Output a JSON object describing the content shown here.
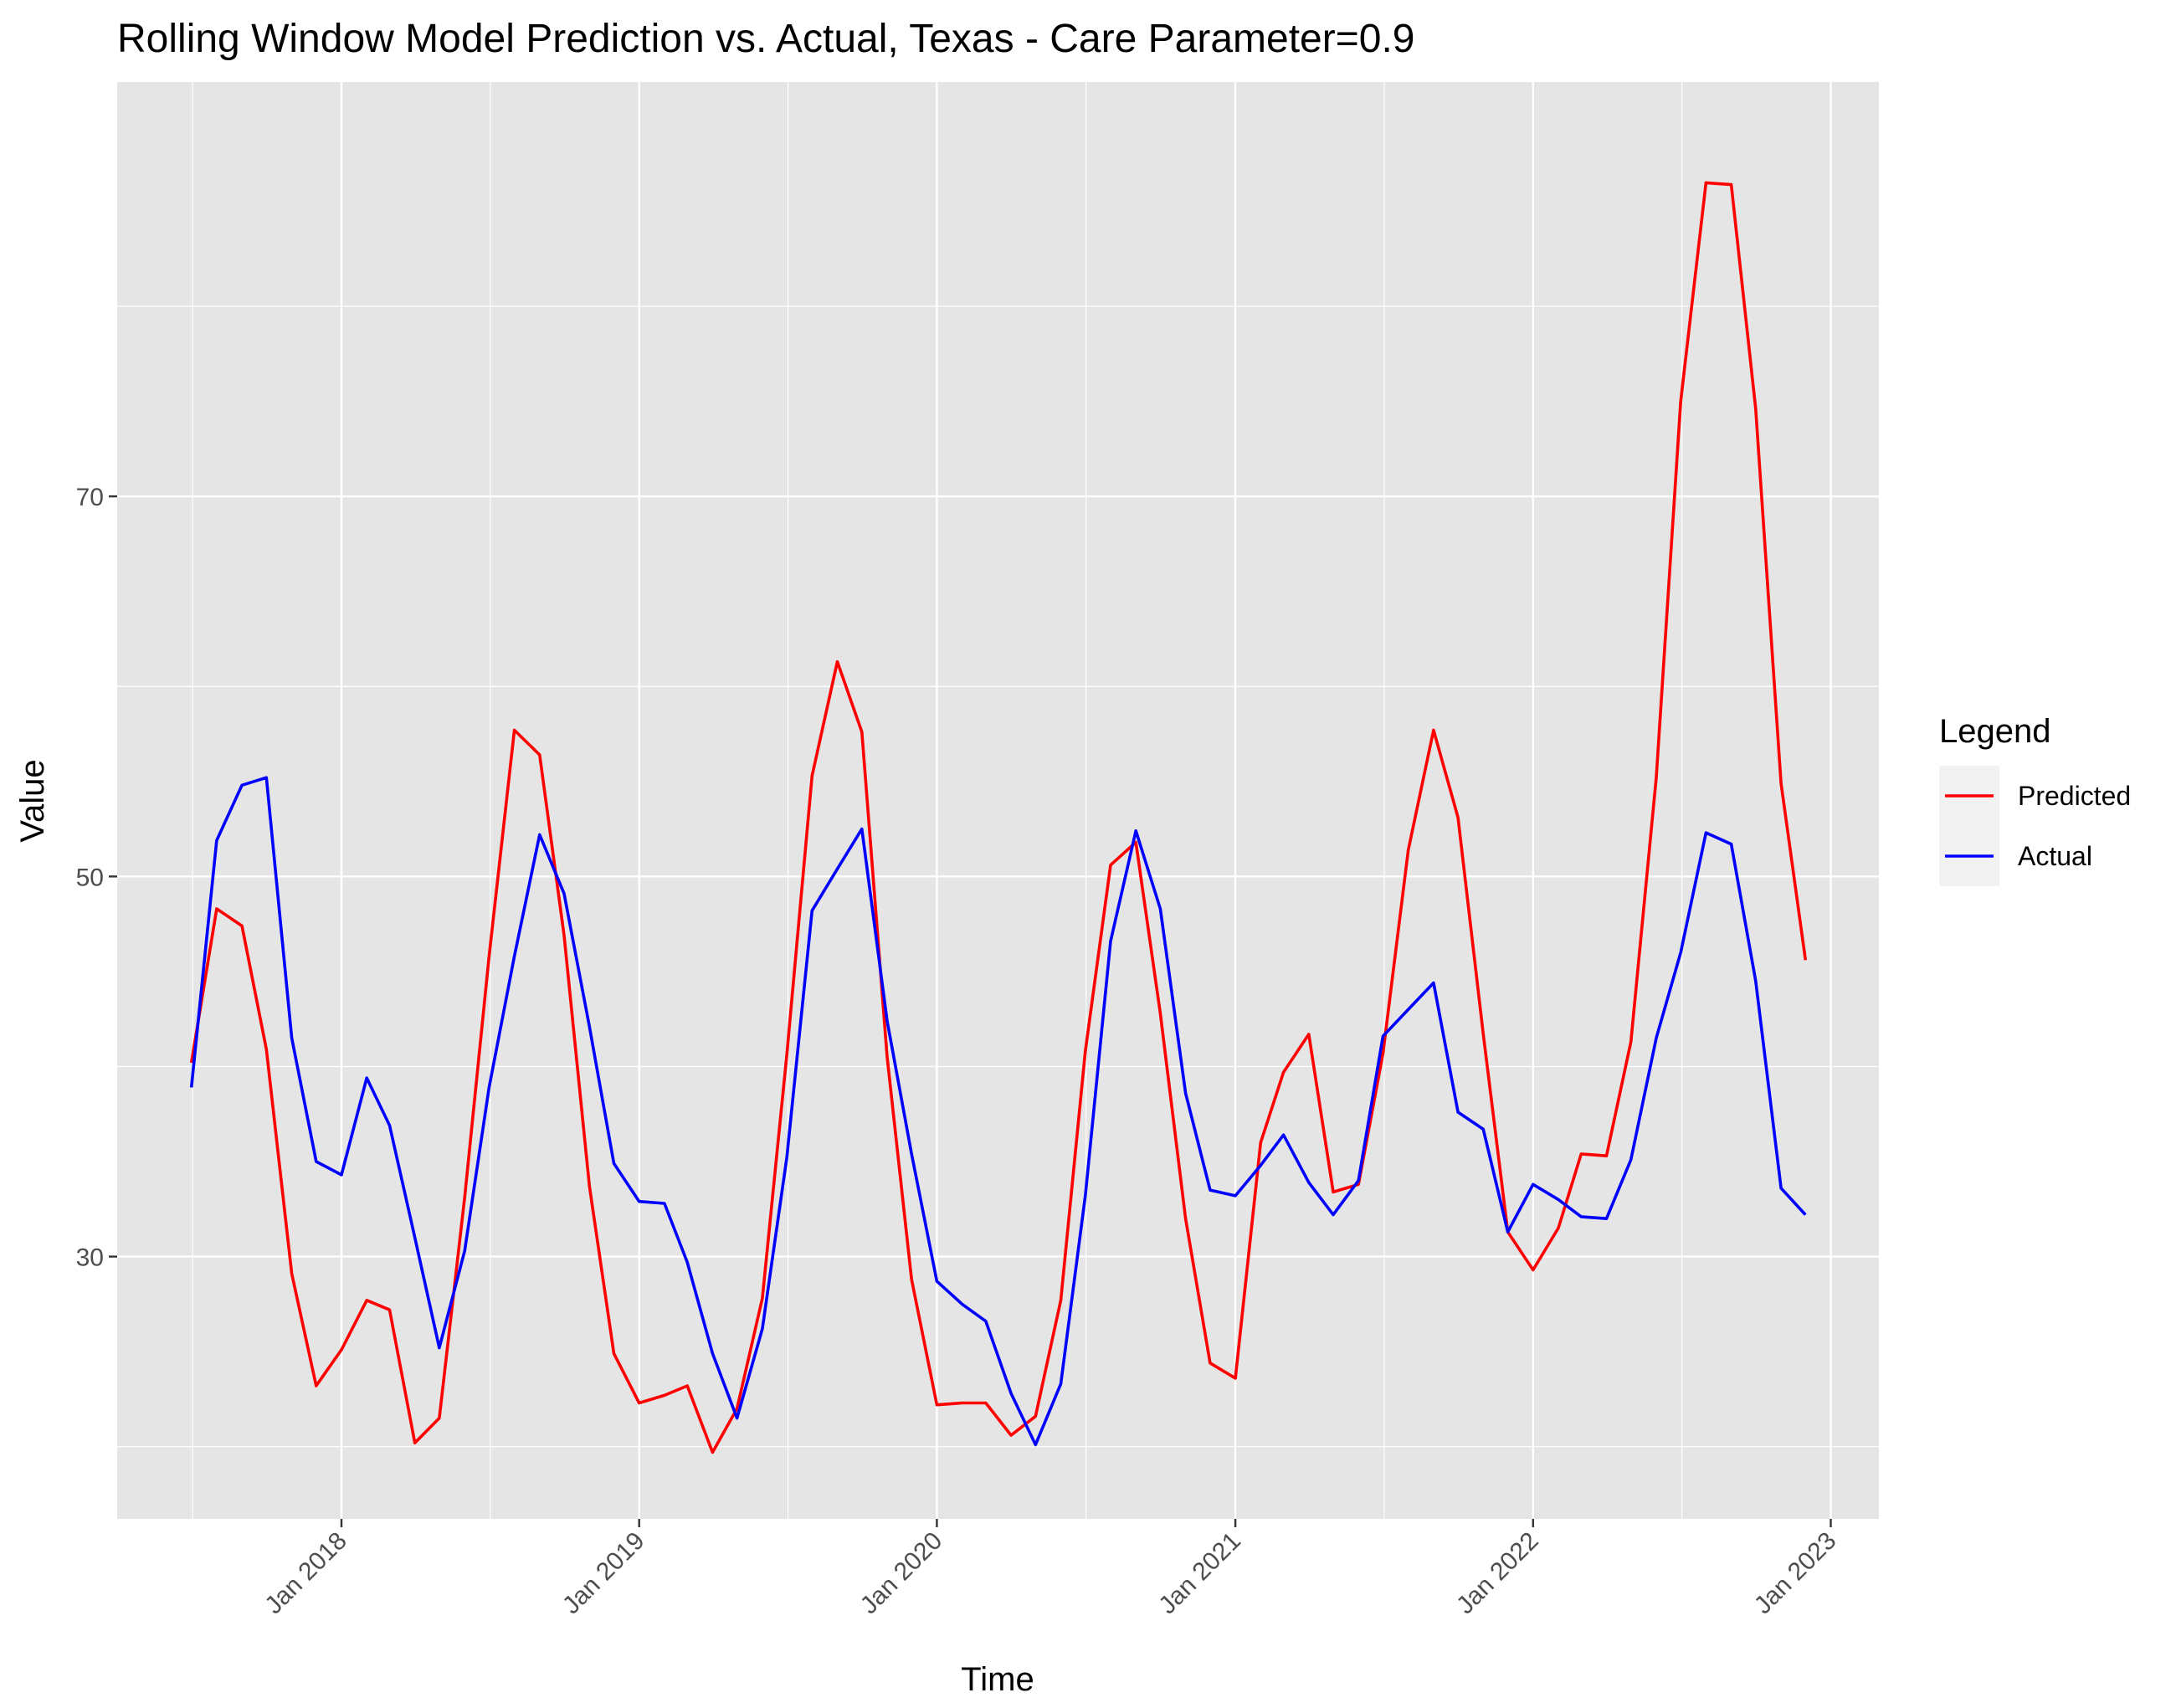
{
  "chart_data": {
    "type": "line",
    "title": "Rolling Window Model Prediction vs. Actual, Texas - Care Parameter=0.9",
    "xlabel": "Time",
    "ylabel": "Value",
    "x_axis": {
      "type": "date",
      "range": [
        "2017-04-01",
        "2023-03-01"
      ],
      "ticks": [
        "2018-01-01",
        "2019-01-01",
        "2020-01-01",
        "2021-01-01",
        "2022-01-01",
        "2023-01-01"
      ],
      "tick_labels": [
        "Jan 2018",
        "Jan 2019",
        "Jan 2020",
        "Jan 2021",
        "Jan 2022",
        "Jan 2023"
      ],
      "tick_label_rotation": -45
    },
    "y_axis": {
      "range": [
        16.2,
        91.8
      ],
      "ticks": [
        30,
        50,
        70
      ],
      "tick_labels": [
        "30",
        "50",
        "70"
      ]
    },
    "grid": true,
    "panel_background": "#e5e5e5",
    "grid_color": "#ffffff",
    "legend": {
      "title": "Legend",
      "position": "right",
      "entries": [
        "Predicted",
        "Actual"
      ]
    },
    "x": [
      "2017-07-01",
      "2017-08-01",
      "2017-09-01",
      "2017-10-01",
      "2017-11-01",
      "2017-12-01",
      "2018-01-01",
      "2018-02-01",
      "2018-03-01",
      "2018-04-01",
      "2018-05-01",
      "2018-06-01",
      "2018-07-01",
      "2018-08-01",
      "2018-09-01",
      "2018-10-01",
      "2018-11-01",
      "2018-12-01",
      "2019-01-01",
      "2019-02-01",
      "2019-03-01",
      "2019-04-01",
      "2019-05-01",
      "2019-06-01",
      "2019-07-01",
      "2019-08-01",
      "2019-09-01",
      "2019-10-01",
      "2019-11-01",
      "2019-12-01",
      "2020-01-01",
      "2020-02-01",
      "2020-03-01",
      "2020-04-01",
      "2020-05-01",
      "2020-06-01",
      "2020-07-01",
      "2020-08-01",
      "2020-09-01",
      "2020-10-01",
      "2020-11-01",
      "2020-12-01",
      "2021-01-01",
      "2021-02-01",
      "2021-03-01",
      "2021-04-01",
      "2021-05-01",
      "2021-06-01",
      "2021-07-01",
      "2021-08-01",
      "2021-09-01",
      "2021-10-01",
      "2021-11-01",
      "2021-12-01",
      "2022-01-01",
      "2022-02-01",
      "2022-03-01",
      "2022-04-01",
      "2022-05-01",
      "2022-06-01",
      "2022-07-01",
      "2022-08-01",
      "2022-09-01",
      "2022-10-01",
      "2022-11-01",
      "2022-12-01"
    ],
    "series": [
      {
        "name": "Predicted",
        "color": "#ff0000",
        "values": [
          40.2,
          48.3,
          47.4,
          40.9,
          29.1,
          23.2,
          25.1,
          27.7,
          27.2,
          20.2,
          21.5,
          33.1,
          45.8,
          57.7,
          56.4,
          46.9,
          33.7,
          24.9,
          22.3,
          22.7,
          23.2,
          19.7,
          22.0,
          27.8,
          40.6,
          55.3,
          61.3,
          57.6,
          40.5,
          28.8,
          22.2,
          22.3,
          22.3,
          20.6,
          21.6,
          27.7,
          40.8,
          50.6,
          51.8,
          42.8,
          32.0,
          24.4,
          23.6,
          36.0,
          39.7,
          41.7,
          33.4,
          33.8,
          40.7,
          51.4,
          57.7,
          53.1,
          41.7,
          31.3,
          29.3,
          31.5,
          35.4,
          35.3,
          41.3,
          55.2,
          75.0,
          86.5,
          86.4,
          74.6,
          54.9,
          45.6
        ]
      },
      {
        "name": "Actual",
        "color": "#0000ff",
        "values": [
          38.9,
          51.9,
          54.8,
          55.2,
          41.5,
          35.0,
          34.3,
          39.4,
          36.9,
          31.0,
          25.2,
          30.3,
          38.9,
          45.8,
          52.2,
          49.1,
          42.1,
          34.9,
          32.9,
          32.8,
          29.7,
          24.9,
          21.5,
          26.2,
          35.2,
          48.2,
          50.4,
          52.5,
          42.4,
          35.4,
          28.7,
          27.5,
          26.6,
          22.8,
          20.1,
          23.3,
          33.2,
          46.6,
          52.4,
          48.3,
          38.6,
          33.5,
          33.2,
          34.8,
          36.4,
          33.9,
          32.2,
          34.0,
          41.6,
          43.0,
          44.4,
          37.6,
          36.7,
          31.3,
          33.8,
          33.0,
          32.1,
          32.0,
          35.1,
          41.5,
          46.0,
          52.3,
          51.7,
          44.5,
          33.6,
          32.2
        ]
      }
    ]
  }
}
